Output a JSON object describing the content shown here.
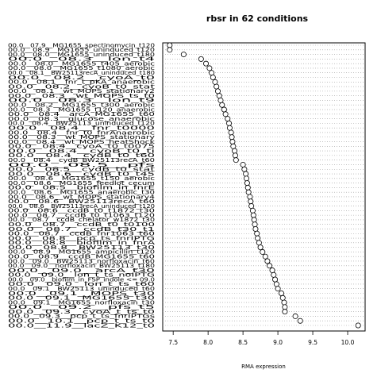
{
  "chart_data": {
    "type": "dot",
    "title": "rbsr in 62 conditions",
    "xlabel": "RMA expression",
    "ylabel": "",
    "xlim": [
      7.35,
      10.25
    ],
    "xticks": [
      "7.5",
      "8.0",
      "8.5",
      "9.0",
      "9.5",
      "10.0"
    ],
    "grid": "dotted horizontal",
    "categories": [
      "00.0__07.9__MG1655_spectinomycin_t120",
      "00.0__08.9__MG1655_uninduced_t120",
      "00.0__08.0__MG1655_uninduced_t180",
      "00.0__08.3__lon_t4",
      "00.0__08.0__MG1655_t405_aerobic",
      "00.0__08.0__MG1655_t1080_aerobic",
      "00.0__08.1__BW25113recA_uninduced_t180",
      "00.0__08.2__cyoA_t0",
      "00.0__08.1__fnr_t_pKA_anaerobic",
      "00.0__08.2__cyoB_t0_stat",
      "00.0__08.1__wt_MOPS_stationary2",
      "00.0__08.3__wt_MOPS_ts_t0",
      "00.0__08.3__lon_t9",
      "00.0__08.2__MG1655_t300_aerobic",
      "00.0__08.3__MG1655_t120_anaerobic",
      "00.0__08.4__arcA_MG1655_t60",
      "00.0__08.3__glucose_anaerobic",
      "00.0__08.4__BW25113_uninduced_t120",
      "00.0__08.4__fnr_t0000",
      "00.0__08.4__fnr_t0_fnrAnaerobic",
      "00.0__08.3__wt_MOPS_stationary",
      "00.0__08.4__wt_MOPS_heatShock",
      "00.0__08.4__cyoA_t0_t0075",
      "00.0__08.4__cyoB_t0_ti",
      "00.0__08.4__cydB_t0_t60",
      "00.0__08.4__cydB_BW25113recA_t60",
      "00.0__08.5__pfs",
      "00.0__08.5__cydB_t0_stat",
      "00.0__08.6__cydB_t0_t45",
      "00.0__08.6__MG1655_t150_aerobic",
      "00.0__08.6__MG1655_feedlot_cecum",
      "00.0__08.5__biofilm_in_fnrE",
      "00.0__08.6__MG1655_anaerobic_t30",
      "00.0__08.6__wt_MOPS_stationary4",
      "00.0__08.6__BW25113recA_t60",
      "00.0__08.6__BW25113recA_uninduced_t120",
      "00.0__08.6__ccdB_t0_t1872_t30",
      "00.0__08.7__ccdB_t0_t1063_t120",
      "00.0__08.7__ccdB_chelator_w1872_t30",
      "00.0__08.7__ccdB_t0_t0100",
      "00.0__08.7__ccdB_t30_t1",
      "00.0__08.7__ccdB_fnr1063_t60",
      "00.0__08.8__pcp_ts_fnrIPTG",
      "00.0__08.8__biofilm_in_fnrA",
      "00.0__08.8__BW25113_t30",
      "00.0__08.9__MG1655_ampicillin_t120",
      "00.0__08.9__ccdB_MG1655_t60",
      "00.0__09.0__BW25113_norfloxacin_t60",
      "00.0__09.0__norfloxacin_BW25113_t180",
      "00.0__09.0__arcA_t30",
      "00.0__09.0__lon_t_ts_noIPTG",
      "00.0__09.0__biofilm_in_FSP_indole <= 09.0",
      "00.0__09.0__lon_t_ts_t60",
      "00.0__09.1__BW25113_uninduced_t60",
      "00.0__09.1__MOPS_t30",
      "00.0__09.1__MG1655_t30",
      "00.0__09.1__MG1655_norfloxacin_t30",
      "00.0__09.2__pfs_t5",
      "00.0__09.3__cyoA_t_ts_t0",
      "00.0__09.3__pcp_t_ts_fnrIPTGs",
      "00.0__10.1__pcp_t_ts_t0",
      "00.0__11.9__lacZ_K12_t0"
    ],
    "values": [
      7.45,
      7.45,
      7.65,
      7.9,
      7.97,
      8.02,
      8.05,
      8.07,
      8.1,
      8.12,
      8.14,
      8.16,
      8.18,
      8.2,
      8.23,
      8.25,
      8.28,
      8.3,
      8.31,
      8.33,
      8.34,
      8.35,
      8.36,
      8.38,
      8.39,
      8.4,
      8.5,
      8.52,
      8.54,
      8.55,
      8.56,
      8.57,
      8.58,
      8.6,
      8.61,
      8.62,
      8.64,
      8.65,
      8.66,
      8.67,
      8.68,
      8.7,
      8.71,
      8.73,
      8.75,
      8.78,
      8.82,
      8.85,
      8.88,
      8.92,
      8.94,
      8.96,
      8.98,
      9.0,
      9.05,
      9.07,
      9.09,
      9.1,
      9.1,
      9.25,
      9.32,
      10.15
    ]
  }
}
